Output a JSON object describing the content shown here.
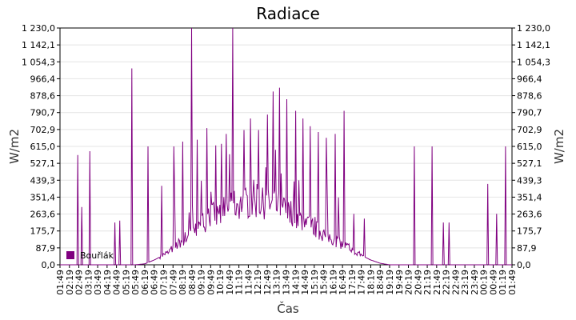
{
  "chart_data": {
    "type": "line",
    "title": "Radiace",
    "xlabel": "Čas",
    "ylabel": "W/m2",
    "ylim": [
      0,
      1230
    ],
    "y_ticks": [
      "0,0",
      "87,9",
      "175,7",
      "263,6",
      "351,4",
      "439,3",
      "527,1",
      "615,0",
      "702,9",
      "790,7",
      "878,6",
      "966,4",
      "1 054,3",
      "1 142,1",
      "1 230,0"
    ],
    "x_ticks": [
      "01:49",
      "02:19",
      "02:49",
      "03:19",
      "03:49",
      "04:19",
      "04:49",
      "05:19",
      "05:49",
      "06:19",
      "06:49",
      "07:19",
      "07:49",
      "08:19",
      "08:49",
      "09:19",
      "09:49",
      "10:19",
      "10:49",
      "11:19",
      "11:49",
      "12:19",
      "12:49",
      "13:19",
      "13:49",
      "14:19",
      "14:49",
      "15:19",
      "15:49",
      "16:19",
      "16:49",
      "17:19",
      "17:49",
      "18:19",
      "18:49",
      "19:19",
      "19:49",
      "20:19",
      "20:49",
      "21:19",
      "21:49",
      "22:19",
      "22:49",
      "23:19",
      "23:49",
      "00:19",
      "00:49",
      "01:19",
      "01:49"
    ],
    "grid": true,
    "legend": "bottom-left",
    "series": [
      {
        "name": "Bouřlák",
        "color": "#800080",
        "x": [
          "01:49",
          "02:19",
          "02:49",
          "03:19",
          "03:49",
          "04:19",
          "04:49",
          "05:19",
          "05:49",
          "06:19",
          "06:49",
          "07:19",
          "07:49",
          "08:19",
          "08:49",
          "09:19",
          "09:49",
          "10:19",
          "10:49",
          "11:19",
          "11:49",
          "12:19",
          "12:49",
          "13:19",
          "13:49",
          "14:19",
          "14:49",
          "15:19",
          "15:49",
          "16:19",
          "16:49",
          "17:19",
          "17:49",
          "18:19",
          "18:49",
          "19:19",
          "19:49",
          "20:19",
          "20:49",
          "21:19",
          "21:49",
          "22:19",
          "22:49",
          "23:19",
          "23:49",
          "00:19",
          "00:49",
          "01:19",
          "01:49"
        ],
        "values": [
          0,
          0,
          0,
          0,
          0,
          0,
          0,
          0,
          0,
          5,
          25,
          50,
          80,
          120,
          160,
          200,
          240,
          270,
          290,
          300,
          305,
          305,
          300,
          290,
          270,
          245,
          215,
          180,
          150,
          125,
          100,
          75,
          50,
          25,
          8,
          0,
          0,
          0,
          0,
          0,
          0,
          0,
          0,
          0,
          0,
          0,
          0,
          0,
          0
        ],
        "spikes": [
          [
            1.9,
            570
          ],
          [
            2.3,
            300
          ],
          [
            3.2,
            590
          ],
          [
            5.8,
            220
          ],
          [
            6.3,
            230
          ],
          [
            7.6,
            1020
          ],
          [
            9.3,
            615
          ],
          [
            10.8,
            410
          ],
          [
            12.1,
            615
          ],
          [
            13.0,
            640
          ],
          [
            14.0,
            1230
          ],
          [
            14.6,
            650
          ],
          [
            15.6,
            710
          ],
          [
            16.5,
            620
          ],
          [
            17.7,
            680
          ],
          [
            18.3,
            1230
          ],
          [
            19.5,
            700
          ],
          [
            20.2,
            760
          ],
          [
            21.1,
            700
          ],
          [
            22.0,
            780
          ],
          [
            22.6,
            900
          ],
          [
            23.3,
            920
          ],
          [
            24.1,
            860
          ],
          [
            25.0,
            800
          ],
          [
            25.8,
            760
          ],
          [
            26.6,
            720
          ],
          [
            27.4,
            690
          ],
          [
            28.3,
            660
          ],
          [
            29.2,
            680
          ],
          [
            30.2,
            800
          ],
          [
            31.2,
            265
          ],
          [
            32.3,
            240
          ],
          [
            37.6,
            615
          ],
          [
            39.5,
            615
          ],
          [
            40.7,
            220
          ],
          [
            41.3,
            220
          ],
          [
            45.4,
            420
          ],
          [
            46.4,
            265
          ],
          [
            47.3,
            615
          ]
        ]
      }
    ]
  }
}
